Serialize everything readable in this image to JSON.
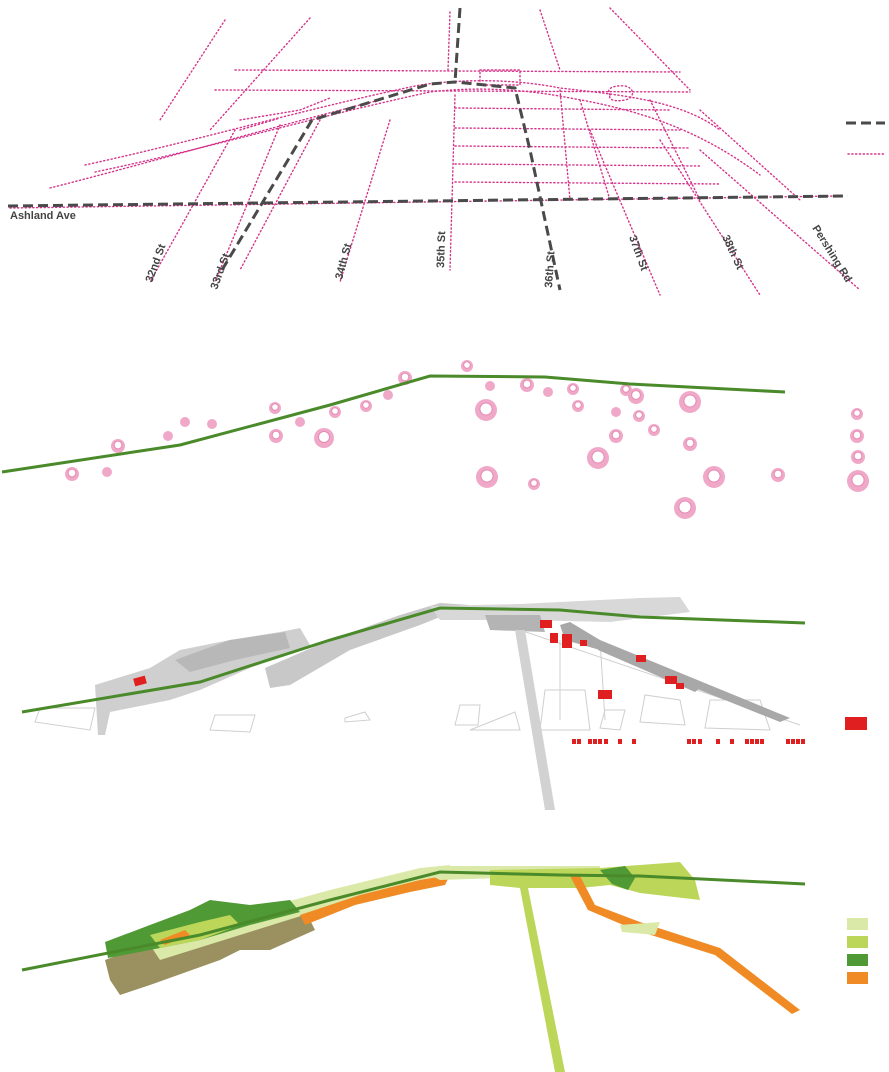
{
  "panel_streets": {
    "avenue_label": "Ashland Ave",
    "street_labels": [
      "32nd St",
      "33rd St",
      "34th St",
      "35th St",
      "36th St",
      "37th St",
      "38th St",
      "Pershing Rd"
    ],
    "legend_line_styles": [
      "dashed-dark",
      "dotted-magenta"
    ]
  },
  "panel_trees": {
    "marker_count_hint": "scattered pink ring markers"
  },
  "panel_buildings": {
    "legend_swatch": "red-block"
  },
  "panel_landuse": {
    "legend_swatches": [
      "pale-green",
      "light-green",
      "dark-green",
      "orange"
    ]
  },
  "colors": {
    "street_dotted": "#d6338a",
    "rail_dashed": "#4a4a4a",
    "green_line": "#4a8a2a",
    "tree_pink": "#f0a8c8",
    "tree_core": "#f8d0e2",
    "building_red": "#e02020",
    "gray_mass": "#c4c4c4",
    "gray_dark": "#9a9a9a",
    "pale_green": "#dbe9a8",
    "light_green": "#bcd65a",
    "dark_green": "#4f9a35",
    "orange": "#f08a24",
    "olive": "#9a9060"
  }
}
